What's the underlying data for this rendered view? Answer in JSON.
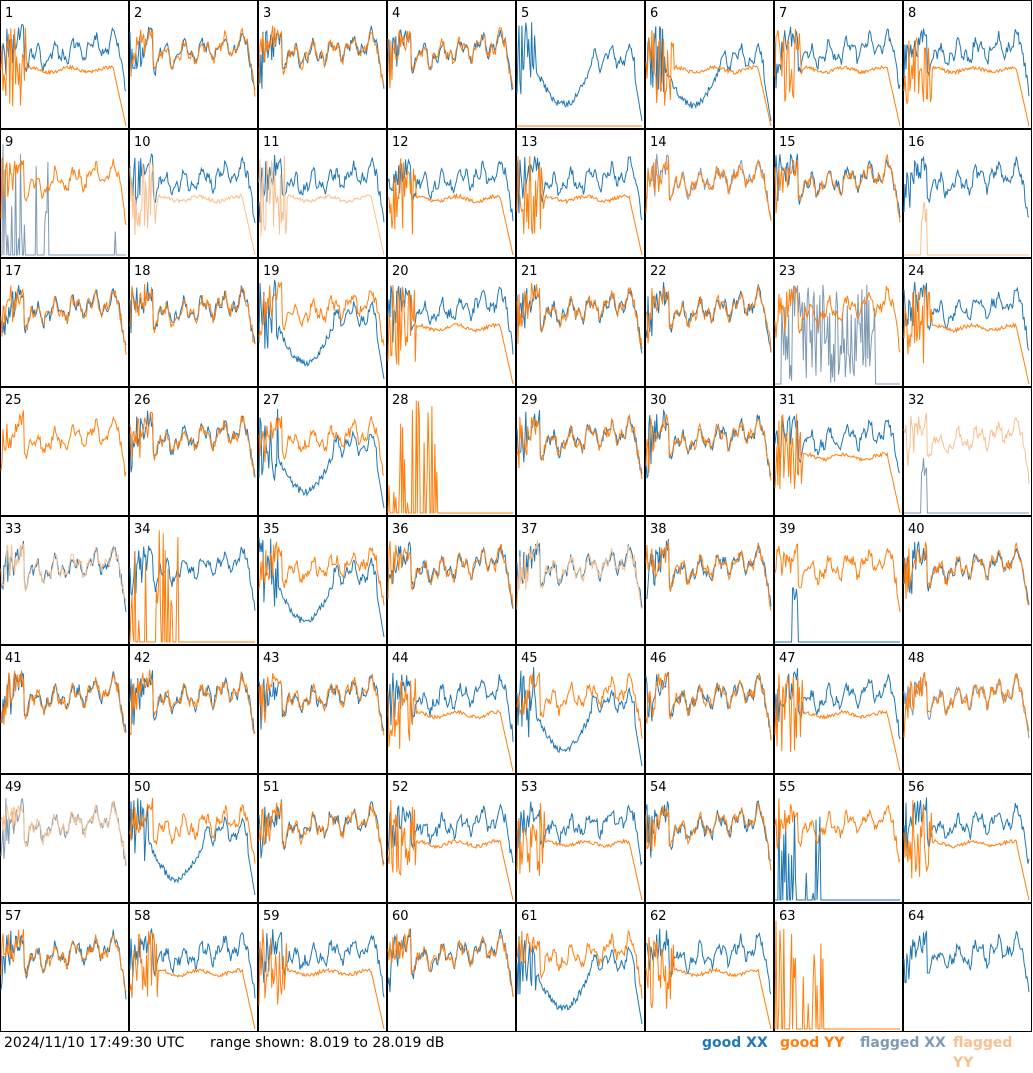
{
  "footer": {
    "timestamp": "2024/11/10 17:49:30 UTC",
    "range_text": "range shown: 8.019 to 28.019 dB"
  },
  "legend": [
    {
      "label": "good XX",
      "color": "#1f77b4"
    },
    {
      "label": "good YY",
      "color": "#ff7f0e"
    },
    {
      "label": "flagged XX",
      "color": "#7f9ab5"
    },
    {
      "label": "flagged YY",
      "color": "#f9c08f"
    }
  ],
  "chart_data": {
    "type": "line",
    "layout": "8x8 small multiples",
    "ylim": [
      8.019,
      28.019
    ],
    "yunit": "dB",
    "panels": [
      {
        "id": "1",
        "xx": "good",
        "yy": "good",
        "xx_profile": "bandpass",
        "yy_profile": "low_flat"
      },
      {
        "id": "2",
        "xx": "good",
        "yy": "good",
        "xx_profile": "bandpass",
        "yy_profile": "bandpass"
      },
      {
        "id": "3",
        "xx": "good",
        "yy": "good",
        "xx_profile": "bandpass",
        "yy_profile": "bandpass"
      },
      {
        "id": "4",
        "xx": "good",
        "yy": "good",
        "xx_profile": "bandpass",
        "yy_profile": "bandpass"
      },
      {
        "id": "5",
        "xx": "good",
        "yy": "good",
        "xx_profile": "dipped",
        "yy_profile": "dead"
      },
      {
        "id": "6",
        "xx": "good",
        "yy": "good",
        "xx_profile": "dipped",
        "yy_profile": "low_flat"
      },
      {
        "id": "7",
        "xx": "good",
        "yy": "good",
        "xx_profile": "bandpass",
        "yy_profile": "low_flat"
      },
      {
        "id": "8",
        "xx": "good",
        "yy": "good",
        "xx_profile": "bandpass",
        "yy_profile": "low_flat"
      },
      {
        "id": "9",
        "xx": "flagged",
        "yy": "good",
        "xx_profile": "spikes",
        "yy_profile": "bandpass"
      },
      {
        "id": "10",
        "xx": "good",
        "yy": "flagged",
        "xx_profile": "bandpass",
        "yy_profile": "low_flat"
      },
      {
        "id": "11",
        "xx": "good",
        "yy": "flagged",
        "xx_profile": "bandpass",
        "yy_profile": "low_flat"
      },
      {
        "id": "12",
        "xx": "good",
        "yy": "good",
        "xx_profile": "bandpass",
        "yy_profile": "low_flat"
      },
      {
        "id": "13",
        "xx": "good",
        "yy": "good",
        "xx_profile": "bandpass",
        "yy_profile": "low_flat"
      },
      {
        "id": "14",
        "xx": "flagged",
        "yy": "good",
        "xx_profile": "bandpass",
        "yy_profile": "bandpass"
      },
      {
        "id": "15",
        "xx": "good",
        "yy": "good",
        "xx_profile": "bandpass",
        "yy_profile": "bandpass"
      },
      {
        "id": "16",
        "xx": "good",
        "yy": "flagged",
        "xx_profile": "bandpass",
        "yy_profile": "single_spike"
      },
      {
        "id": "17",
        "xx": "good",
        "yy": "good",
        "xx_profile": "bandpass",
        "yy_profile": "bandpass"
      },
      {
        "id": "18",
        "xx": "good",
        "yy": "good",
        "xx_profile": "bandpass",
        "yy_profile": "bandpass"
      },
      {
        "id": "19",
        "xx": "good",
        "yy": "good",
        "xx_profile": "dipped",
        "yy_profile": "bandpass"
      },
      {
        "id": "20",
        "xx": "good",
        "yy": "good",
        "xx_profile": "bandpass",
        "yy_profile": "low_flat"
      },
      {
        "id": "21",
        "xx": "good",
        "yy": "good",
        "xx_profile": "bandpass",
        "yy_profile": "bandpass"
      },
      {
        "id": "22",
        "xx": "good",
        "yy": "good",
        "xx_profile": "bandpass",
        "yy_profile": "bandpass"
      },
      {
        "id": "23",
        "xx": "flagged",
        "yy": "good",
        "xx_profile": "noisy_block",
        "yy_profile": "bandpass"
      },
      {
        "id": "24",
        "xx": "good",
        "yy": "good",
        "xx_profile": "bandpass",
        "yy_profile": "low_flat"
      },
      {
        "id": "25",
        "xx": "none",
        "yy": "good",
        "xx_profile": "none",
        "yy_profile": "bandpass"
      },
      {
        "id": "26",
        "xx": "good",
        "yy": "good",
        "xx_profile": "bandpass",
        "yy_profile": "bandpass"
      },
      {
        "id": "27",
        "xx": "good",
        "yy": "good",
        "xx_profile": "dipped",
        "yy_profile": "bandpass"
      },
      {
        "id": "28",
        "xx": "none",
        "yy": "good",
        "xx_profile": "none",
        "yy_profile": "spikes_left"
      },
      {
        "id": "29",
        "xx": "good",
        "yy": "good",
        "xx_profile": "bandpass",
        "yy_profile": "bandpass"
      },
      {
        "id": "30",
        "xx": "good",
        "yy": "good",
        "xx_profile": "bandpass",
        "yy_profile": "bandpass"
      },
      {
        "id": "31",
        "xx": "good",
        "yy": "good",
        "xx_profile": "bandpass",
        "yy_profile": "low_flat"
      },
      {
        "id": "32",
        "xx": "flagged",
        "yy": "flagged",
        "xx_profile": "single_spike",
        "yy_profile": "bandpass"
      },
      {
        "id": "33",
        "xx": "good",
        "yy": "flagged",
        "xx_profile": "bandpass",
        "yy_profile": "bandpass"
      },
      {
        "id": "34",
        "xx": "good",
        "yy": "good",
        "xx_profile": "bandpass",
        "yy_profile": "spikes_left"
      },
      {
        "id": "35",
        "xx": "good",
        "yy": "good",
        "xx_profile": "dipped",
        "yy_profile": "bandpass"
      },
      {
        "id": "36",
        "xx": "good",
        "yy": "good",
        "xx_profile": "bandpass",
        "yy_profile": "bandpass"
      },
      {
        "id": "37",
        "xx": "good",
        "yy": "flagged",
        "xx_profile": "bandpass",
        "yy_profile": "bandpass"
      },
      {
        "id": "38",
        "xx": "good",
        "yy": "good",
        "xx_profile": "bandpass",
        "yy_profile": "bandpass"
      },
      {
        "id": "39",
        "xx": "good",
        "yy": "good",
        "xx_profile": "single_spike",
        "yy_profile": "bandpass"
      },
      {
        "id": "40",
        "xx": "good",
        "yy": "good",
        "xx_profile": "bandpass",
        "yy_profile": "bandpass"
      },
      {
        "id": "41",
        "xx": "good",
        "yy": "good",
        "xx_profile": "bandpass",
        "yy_profile": "bandpass"
      },
      {
        "id": "42",
        "xx": "good",
        "yy": "good",
        "xx_profile": "bandpass",
        "yy_profile": "bandpass"
      },
      {
        "id": "43",
        "xx": "good",
        "yy": "good",
        "xx_profile": "bandpass",
        "yy_profile": "bandpass"
      },
      {
        "id": "44",
        "xx": "good",
        "yy": "good",
        "xx_profile": "bandpass",
        "yy_profile": "low_flat"
      },
      {
        "id": "45",
        "xx": "good",
        "yy": "good",
        "xx_profile": "dipped",
        "yy_profile": "bandpass"
      },
      {
        "id": "46",
        "xx": "good",
        "yy": "good",
        "xx_profile": "bandpass",
        "yy_profile": "bandpass"
      },
      {
        "id": "47",
        "xx": "good",
        "yy": "good",
        "xx_profile": "bandpass",
        "yy_profile": "low_flat"
      },
      {
        "id": "48",
        "xx": "flagged",
        "yy": "good",
        "xx_profile": "bandpass",
        "yy_profile": "bandpass"
      },
      {
        "id": "49",
        "xx": "flagged",
        "yy": "flagged",
        "xx_profile": "bandpass",
        "yy_profile": "bandpass"
      },
      {
        "id": "50",
        "xx": "good",
        "yy": "good",
        "xx_profile": "dipped",
        "yy_profile": "bandpass"
      },
      {
        "id": "51",
        "xx": "good",
        "yy": "good",
        "xx_profile": "bandpass",
        "yy_profile": "bandpass"
      },
      {
        "id": "52",
        "xx": "good",
        "yy": "good",
        "xx_profile": "bandpass",
        "yy_profile": "low_flat"
      },
      {
        "id": "53",
        "xx": "good",
        "yy": "good",
        "xx_profile": "bandpass",
        "yy_profile": "low_flat"
      },
      {
        "id": "54",
        "xx": "good",
        "yy": "good",
        "xx_profile": "bandpass",
        "yy_profile": "bandpass"
      },
      {
        "id": "55",
        "xx": "good",
        "yy": "good",
        "xx_profile": "spikes_left",
        "yy_profile": "bandpass"
      },
      {
        "id": "56",
        "xx": "good",
        "yy": "good",
        "xx_profile": "bandpass",
        "yy_profile": "low_flat"
      },
      {
        "id": "57",
        "xx": "good",
        "yy": "good",
        "xx_profile": "bandpass",
        "yy_profile": "bandpass"
      },
      {
        "id": "58",
        "xx": "good",
        "yy": "good",
        "xx_profile": "bandpass",
        "yy_profile": "low_flat"
      },
      {
        "id": "59",
        "xx": "good",
        "yy": "good",
        "xx_profile": "bandpass",
        "yy_profile": "low_flat"
      },
      {
        "id": "60",
        "xx": "good",
        "yy": "good",
        "xx_profile": "bandpass",
        "yy_profile": "bandpass"
      },
      {
        "id": "61",
        "xx": "good",
        "yy": "good",
        "xx_profile": "dipped",
        "yy_profile": "bandpass"
      },
      {
        "id": "62",
        "xx": "good",
        "yy": "good",
        "xx_profile": "bandpass",
        "yy_profile": "low_flat"
      },
      {
        "id": "63",
        "xx": "none",
        "yy": "good",
        "xx_profile": "none",
        "yy_profile": "spikes_left"
      },
      {
        "id": "64",
        "xx": "good",
        "yy": "none",
        "xx_profile": "bandpass",
        "yy_profile": "none"
      }
    ]
  }
}
